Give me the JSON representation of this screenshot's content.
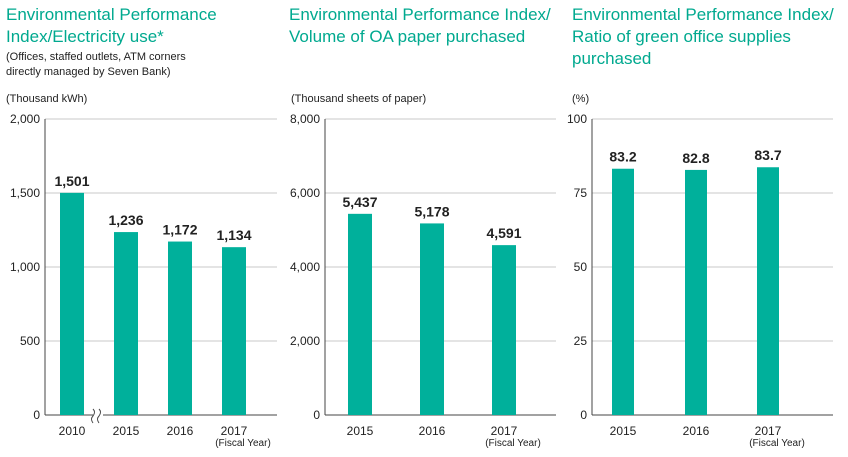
{
  "chart_data": [
    {
      "type": "bar",
      "title": "Environmental Performance Index/Electricity use*",
      "title_lines": [
        "Environmental Performance",
        "Index/Electricity use*"
      ],
      "subtitle": "(Offices, staffed outlets, ATM corners directly managed by Seven Bank)",
      "subtitle_lines": [
        "(Offices, staffed outlets, ATM corners",
        "directly managed by Seven Bank)"
      ],
      "ylabel": "(Thousand kWh)",
      "xlabel": "(Fiscal Year)",
      "categories": [
        "2010",
        "2015",
        "2016",
        "2017"
      ],
      "values": [
        1501,
        1236,
        1172,
        1134
      ],
      "value_labels": [
        "1,501",
        "1,236",
        "1,172",
        "1,134"
      ],
      "ylim": [
        0,
        2000
      ],
      "yticks": [
        "0",
        "500",
        "1,000",
        "1,500",
        "2,000"
      ],
      "axis_break": "between 2010 and 2015",
      "grid": true,
      "bar_color": "#00b09b"
    },
    {
      "type": "bar",
      "title": "Environmental Performance Index/Volume of OA paper purchased",
      "title_lines": [
        "Environmental Performance Index/",
        "Volume of OA paper purchased"
      ],
      "ylabel": "(Thousand sheets of paper)",
      "xlabel": "(Fiscal Year)",
      "categories": [
        "2015",
        "2016",
        "2017"
      ],
      "values": [
        5437,
        5178,
        4591
      ],
      "value_labels": [
        "5,437",
        "5,178",
        "4,591"
      ],
      "ylim": [
        0,
        8000
      ],
      "yticks": [
        "0",
        "2,000",
        "4,000",
        "6,000",
        "8,000"
      ],
      "grid": true,
      "bar_color": "#00b09b"
    },
    {
      "type": "bar",
      "title": "Environmental Performance Index/Ratio of green office supplies purchased",
      "title_lines": [
        "Environmental Performance Index/",
        "Ratio of green office supplies",
        "purchased"
      ],
      "ylabel": "(%)",
      "xlabel": "(Fiscal Year)",
      "categories": [
        "2015",
        "2016",
        "2017"
      ],
      "values": [
        83.2,
        82.8,
        83.7
      ],
      "value_labels": [
        "83.2",
        "82.8",
        "83.7"
      ],
      "ylim": [
        0,
        100
      ],
      "yticks": [
        "0",
        "25",
        "50",
        "75",
        "100"
      ],
      "grid": true,
      "bar_color": "#00b09b"
    }
  ]
}
